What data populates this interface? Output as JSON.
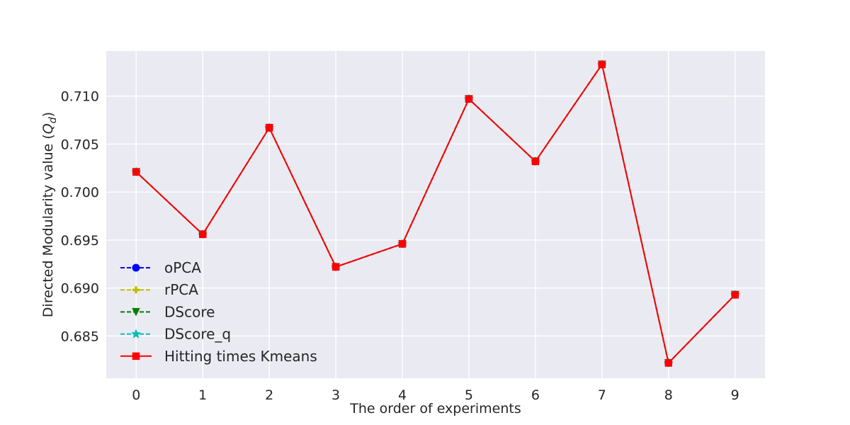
{
  "chart_data": {
    "type": "line",
    "title": "",
    "xlabel": "The order of experiments",
    "ylabel": "Directed Modularity value (",
    "ylabel_math": "Q",
    "ylabel_math_sub": "d",
    "ylabel_close": ")",
    "x": [
      0,
      1,
      2,
      3,
      4,
      5,
      6,
      7,
      8,
      9
    ],
    "xlim": [
      -0.45,
      9.45
    ],
    "ylim": [
      0.6806,
      0.7147
    ],
    "x_ticks": [
      "0",
      "1",
      "2",
      "3",
      "4",
      "5",
      "6",
      "7",
      "8",
      "9"
    ],
    "y_ticks": [
      0.685,
      0.69,
      0.695,
      0.7,
      0.705,
      0.71
    ],
    "y_tick_labels": [
      "0.685",
      "0.690",
      "0.695",
      "0.700",
      "0.705",
      "0.710"
    ],
    "grid": true,
    "legend_position": "lower-left",
    "background_color": "#eaeaf2",
    "series": [
      {
        "name": "oPCA",
        "color": "#0000ff",
        "linestyle": "dashed",
        "marker": "circle",
        "values": [
          0.7021,
          0.6956,
          0.7067,
          0.6922,
          0.6946,
          0.7097,
          0.7032,
          0.7133,
          0.6822,
          0.6893
        ]
      },
      {
        "name": "rPCA",
        "color": "#bfbf00",
        "linestyle": "dashed",
        "marker": "plus",
        "values": [
          0.7021,
          0.6956,
          0.7067,
          0.6922,
          0.6946,
          0.7097,
          0.7032,
          0.7133,
          0.6822,
          0.6893
        ]
      },
      {
        "name": "DScore",
        "color": "#008000",
        "linestyle": "dashed",
        "marker": "triangle-down",
        "values": [
          0.7021,
          0.6956,
          0.7067,
          0.6922,
          0.6946,
          0.7097,
          0.7032,
          0.7133,
          0.6822,
          0.6893
        ]
      },
      {
        "name": "DScore_q",
        "color": "#00bfbf",
        "linestyle": "dashed",
        "marker": "star",
        "values": [
          0.7021,
          0.6956,
          0.7067,
          0.6922,
          0.6946,
          0.7097,
          0.7032,
          0.7133,
          0.6822,
          0.6893
        ]
      },
      {
        "name": "Hitting times Kmeans",
        "color": "#ff0000",
        "linestyle": "solid",
        "marker": "square",
        "values": [
          0.7021,
          0.6956,
          0.7067,
          0.6922,
          0.6946,
          0.7097,
          0.7032,
          0.7133,
          0.6822,
          0.6893
        ]
      }
    ]
  }
}
